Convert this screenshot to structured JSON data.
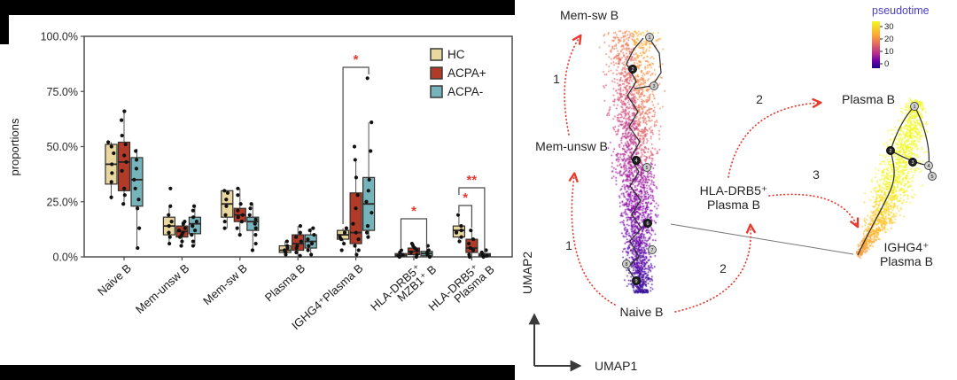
{
  "colors": {
    "hc": "#e8d79f",
    "acpa_pos": "#b13a28",
    "acpa_neg": "#74b4ba",
    "star_red": "#e8392e",
    "frame": "#4d4d4d",
    "dot": "#111111",
    "arrow_red": "#e8392e",
    "pseudotime_title": "#4b40c4"
  },
  "chart_data": [
    {
      "type": "box",
      "title": "",
      "ylabel": "proportions",
      "ylim": [
        0,
        100
      ],
      "ytick_labels": [
        "100.0%",
        "75.0%",
        "50.0%",
        "25.0%",
        "0.0%"
      ],
      "categories": [
        "Naive B",
        "Mem-unsw B",
        "Mem-sw B",
        "Plasma B",
        "IGHG4⁺Plasma B",
        "HLA-DRB5⁺|MZB1⁺ B",
        "HLA-DRB5⁺|Plasma B"
      ],
      "legend_position": "top-right",
      "series": [
        {
          "name": "HC",
          "color": "#e8d79f",
          "boxes": [
            [
              26,
              33,
              42,
              51,
              52
            ],
            [
              6,
              10,
              14,
              18,
              23
            ],
            [
              13,
              18,
              24,
              30,
              30
            ],
            [
              1,
              2,
              3,
              5,
              7
            ],
            [
              6,
              8,
              10,
              12,
              13
            ],
            [
              0,
              0.3,
              0.8,
              1.5,
              3
            ],
            [
              7,
              9,
              12,
              14,
              19
            ]
          ],
          "points": [
            [
              27,
              34,
              38,
              42,
              47,
              50,
              52
            ],
            [
              6,
              9,
              11,
              14,
              16,
              19,
              23,
              31
            ],
            [
              13,
              16,
              19,
              23,
              26,
              29,
              30
            ],
            [
              1,
              2,
              3,
              4,
              5,
              7
            ],
            [
              3,
              6,
              8,
              9,
              11,
              13
            ],
            [
              0,
              0.5,
              1,
              2,
              3
            ],
            [
              7,
              9,
              11,
              12,
              14,
              19
            ]
          ]
        },
        {
          "name": "ACPA+",
          "color": "#b13a28",
          "boxes": [
            [
              24,
              30,
              43,
              52,
              66
            ],
            [
              5,
              9,
              11.5,
              14,
              16
            ],
            [
              10,
              16,
              19,
              22,
              31
            ],
            [
              0.5,
              3,
              6,
              10,
              14
            ],
            [
              1,
              6,
              11,
              29,
              44
            ],
            [
              0,
              1,
              2.5,
              4,
              6
            ],
            [
              0,
              2,
              4,
              8,
              12
            ]
          ],
          "points": [
            [
              24,
              28,
              31,
              39,
              43,
              46,
              51,
              55,
              62,
              66
            ],
            [
              5,
              7,
              9,
              10,
              11,
              12,
              13,
              15,
              16
            ],
            [
              10,
              13,
              16,
              18,
              19,
              21,
              24,
              28,
              31
            ],
            [
              0.5,
              2,
              4,
              5,
              7,
              9,
              11,
              14
            ],
            [
              1,
              3,
              5,
              8,
              11,
              15,
              22,
              28,
              36,
              44,
              50
            ],
            [
              0,
              1,
              2,
              3,
              4,
              5,
              6
            ],
            [
              0,
              1,
              3,
              4,
              6,
              8,
              12
            ]
          ]
        },
        {
          "name": "ACPA-",
          "color": "#74b4ba",
          "boxes": [
            [
              4,
              23,
              35,
              45,
              49
            ],
            [
              5,
              10.5,
              15,
              18,
              23
            ],
            [
              3,
              12,
              16,
              18,
              24
            ],
            [
              1,
              4,
              7,
              10,
              13
            ],
            [
              9,
              12,
              24,
              36,
              61
            ],
            [
              0,
              0.5,
              1.5,
              2.5,
              5
            ],
            [
              0,
              0.3,
              0.8,
              1.5,
              3
            ]
          ],
          "points": [
            [
              4,
              13,
              22,
              26,
              31,
              35,
              40,
              44,
              48
            ],
            [
              5,
              7,
              10,
              12,
              14,
              16,
              18,
              21,
              23
            ],
            [
              3,
              6,
              10,
              13,
              15,
              17,
              19,
              22,
              24
            ],
            [
              1,
              3,
              5,
              6,
              8,
              10,
              12,
              13
            ],
            [
              9,
              11,
              14,
              20,
              25,
              30,
              35,
              48,
              61,
              81
            ],
            [
              0,
              1,
              2,
              3,
              5
            ],
            [
              0,
              0.5,
              1,
              2,
              3
            ]
          ]
        }
      ],
      "significance": [
        {
          "category": "IGHG4⁺Plasma B",
          "between": [
            "HC",
            "ACPA-"
          ],
          "stars": "*"
        },
        {
          "category": "HLA-DRB5⁺ MZB1⁺ B",
          "between": [
            "HC",
            "ACPA-"
          ],
          "stars": "*"
        },
        {
          "category": "HLA-DRB5⁺ Plasma B",
          "between": [
            "HC",
            "ACPA+"
          ],
          "stars": "*"
        },
        {
          "category": "HLA-DRB5⁺ Plasma B",
          "between": [
            "HC",
            "ACPA-"
          ],
          "stars": "**"
        }
      ]
    },
    {
      "type": "scatter",
      "subtype": "umap-pseudotime-trajectory",
      "xlabel": "UMAP1",
      "ylabel": "UMAP2",
      "colorbar": {
        "title": "pseudotime",
        "tick_labels": [
          "30",
          "20",
          "10",
          "0"
        ],
        "min": 0,
        "max": 33,
        "colormap": "plasma"
      },
      "cluster_labels": [
        "Mem-sw B",
        "Mem-unsw B",
        "Naive B",
        "Plasma B",
        "HLA-DRB5⁺|Plasma B",
        "IGHG4⁺|Plasma B"
      ],
      "trajectory_steps": [
        {
          "label": "1",
          "from": "Naive B",
          "to": "Mem-unsw B"
        },
        {
          "label": "1",
          "from": "Mem-unsw B",
          "to": "Mem-sw B"
        },
        {
          "label": "2",
          "from": "Naive B",
          "to": "HLA-DRB5⁺ Plasma B"
        },
        {
          "label": "2",
          "from": "HLA-DRB5⁺ Plasma B",
          "to": "Plasma B"
        },
        {
          "label": "3",
          "from": "HLA-DRB5⁺ Plasma B",
          "to": "IGHG4⁺ Plasma B"
        }
      ]
    }
  ]
}
